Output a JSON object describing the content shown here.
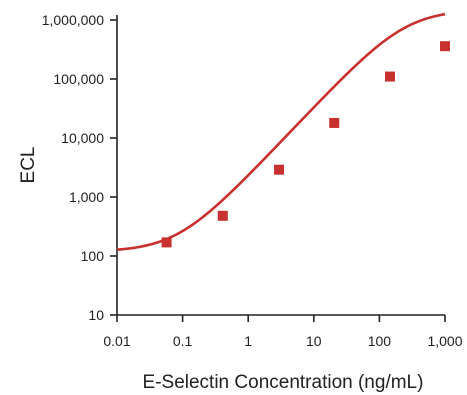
{
  "chart_data": {
    "type": "scatter",
    "title": "",
    "xlabel": "E-Selectin Concentration (ng/mL)",
    "ylabel": "ECL",
    "x_scale": "log",
    "y_scale": "log",
    "xlim": [
      0.01,
      1000
    ],
    "ylim": [
      10,
      1000000
    ],
    "x_ticks": [
      {
        "value": 0.01,
        "label": "0.01"
      },
      {
        "value": 0.1,
        "label": "0.1"
      },
      {
        "value": 1,
        "label": "1"
      },
      {
        "value": 10,
        "label": "10"
      },
      {
        "value": 100,
        "label": "100"
      },
      {
        "value": 1000,
        "label": "1,000"
      }
    ],
    "y_ticks": [
      {
        "value": 10,
        "label": "10"
      },
      {
        "value": 100,
        "label": "100"
      },
      {
        "value": 1000,
        "label": "1,000"
      },
      {
        "value": 10000,
        "label": "10,000"
      },
      {
        "value": 100000,
        "label": "100,000"
      },
      {
        "value": 1000000,
        "label": "1,000,000"
      }
    ],
    "grid": false,
    "series": [
      {
        "color": "#c8312f",
        "marker": "square",
        "points": [
          {
            "x": 0.057,
            "y": 170
          },
          {
            "x": 0.41,
            "y": 480
          },
          {
            "x": 2.95,
            "y": 2900
          },
          {
            "x": 20.5,
            "y": 18000
          },
          {
            "x": 145,
            "y": 110000
          },
          {
            "x": 1000,
            "y": 360000
          }
        ],
        "fit_curve": {
          "type": "4PL",
          "bottom": 118,
          "top": 1500000,
          "ec50": 250,
          "hill": 1.18
        }
      }
    ]
  }
}
